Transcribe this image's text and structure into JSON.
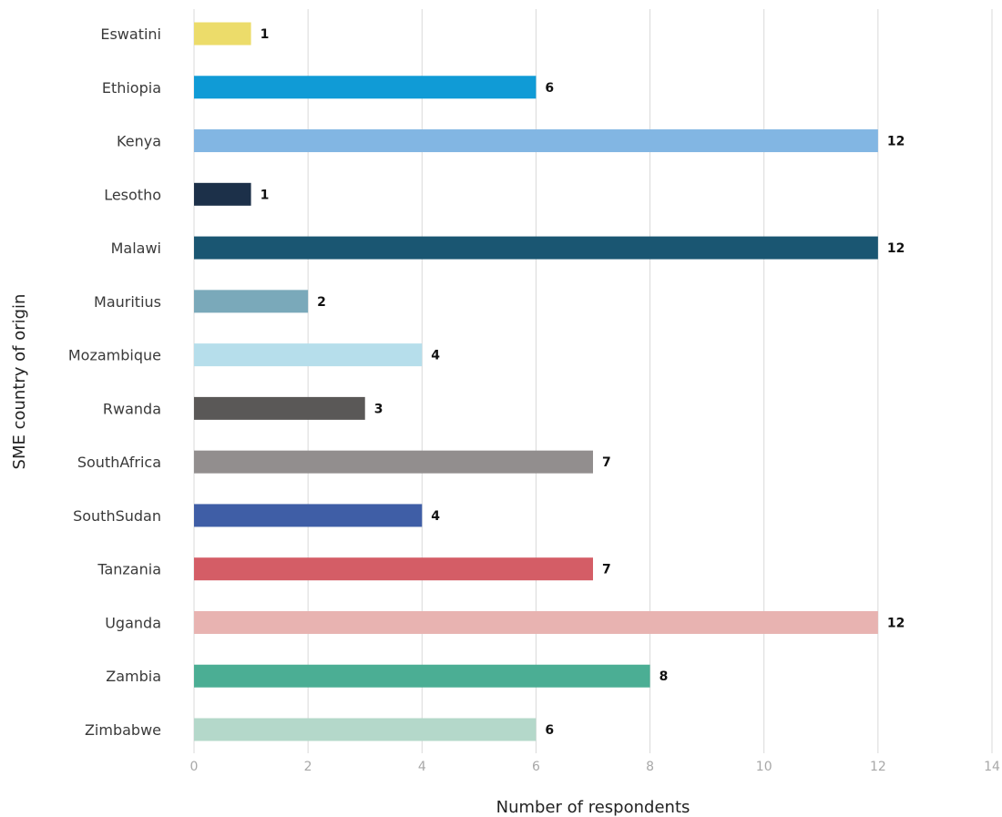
{
  "chart_data": {
    "type": "bar",
    "orientation": "horizontal",
    "title": "",
    "xlabel": "Number of respondents",
    "ylabel": "SME country of origin",
    "xlim": [
      0,
      14
    ],
    "xticks": [
      0,
      2,
      4,
      6,
      8,
      10,
      12,
      14
    ],
    "grid": "vertical",
    "legend": "none",
    "categories": [
      "Eswatini",
      "Ethiopia",
      "Kenya",
      "Lesotho",
      "Malawi",
      "Mauritius",
      "Mozambique",
      "Rwanda",
      "SouthAfrica",
      "SouthSudan",
      "Tanzania",
      "Uganda",
      "Zambia",
      "Zimbabwe"
    ],
    "values": [
      1,
      6,
      12,
      1,
      12,
      2,
      4,
      3,
      7,
      4,
      7,
      12,
      8,
      6
    ],
    "colors": [
      "#ecdc6a",
      "#109bd6",
      "#82b6e3",
      "#1c3049",
      "#1a5672",
      "#7aa9ba",
      "#b6deeb",
      "#5a5857",
      "#928e8e",
      "#3f5ea6",
      "#d45d66",
      "#e8b3b1",
      "#4bae94",
      "#b4d8ca"
    ]
  }
}
